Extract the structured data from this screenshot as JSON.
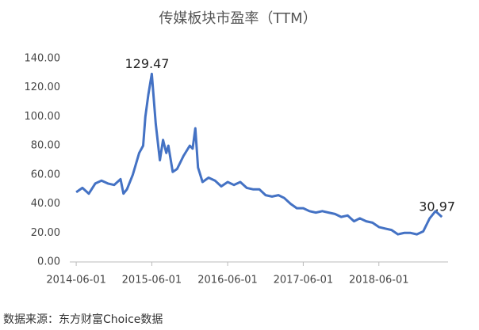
{
  "chart_data": {
    "type": "line",
    "title": "传媒板块市盈率（TTM）",
    "x": [
      "2014-06-01",
      "2014-07-01",
      "2014-08-01",
      "2014-09-01",
      "2014-10-01",
      "2014-11-01",
      "2014-12-01",
      "2015-01-01",
      "2015-01-15",
      "2015-02-01",
      "2015-03-01",
      "2015-04-01",
      "2015-04-20",
      "2015-05-01",
      "2015-05-15",
      "2015-06-01",
      "2015-06-20",
      "2015-07-10",
      "2015-07-25",
      "2015-08-10",
      "2015-08-20",
      "2015-09-10",
      "2015-10-01",
      "2015-11-01",
      "2015-12-01",
      "2015-12-15",
      "2015-12-28",
      "2016-01-10",
      "2016-02-01",
      "2016-03-01",
      "2016-04-01",
      "2016-05-01",
      "2016-06-01",
      "2016-07-01",
      "2016-08-01",
      "2016-09-01",
      "2016-10-01",
      "2016-11-01",
      "2016-12-01",
      "2017-01-01",
      "2017-02-01",
      "2017-03-01",
      "2017-04-01",
      "2017-05-01",
      "2017-06-01",
      "2017-07-01",
      "2017-08-01",
      "2017-09-01",
      "2017-10-01",
      "2017-11-01",
      "2017-12-01",
      "2018-01-01",
      "2018-02-01",
      "2018-03-01",
      "2018-04-01",
      "2018-05-01",
      "2018-06-01",
      "2018-07-01",
      "2018-08-01",
      "2018-09-01",
      "2018-10-01",
      "2018-11-01",
      "2018-12-01",
      "2019-01-01",
      "2019-02-01",
      "2019-03-01",
      "2019-04-01"
    ],
    "series": [
      {
        "color": "#4472c4",
        "values": [
          48,
          51,
          47,
          54,
          56,
          54,
          53,
          57,
          47,
          50,
          60,
          75,
          80,
          100,
          115,
          129.47,
          95,
          70,
          84,
          75,
          80,
          62,
          64,
          73,
          80,
          78,
          92,
          65,
          55,
          58,
          56,
          52,
          55,
          53,
          55,
          51,
          50,
          50,
          46,
          45,
          46,
          44,
          40,
          37,
          37,
          35,
          34,
          35,
          34,
          33,
          31,
          32,
          28,
          30,
          28,
          27,
          24,
          23,
          22,
          19,
          20,
          20,
          19,
          21,
          30,
          35,
          30.97
        ]
      }
    ],
    "xlim": [
      "2014-05-01",
      "2019-05-01"
    ],
    "xticks": [
      "2014-06-01",
      "2015-06-01",
      "2016-06-01",
      "2017-06-01",
      "2018-06-01"
    ],
    "ylim": [
      0,
      140
    ],
    "yticks": [
      {
        "value": 0,
        "label": "0.00"
      },
      {
        "value": 20,
        "label": "20.00"
      },
      {
        "value": 40,
        "label": "40.00"
      },
      {
        "value": 60,
        "label": "60.00"
      },
      {
        "value": 80,
        "label": "80.00"
      },
      {
        "value": 100,
        "label": "100.00"
      },
      {
        "value": 120,
        "label": "120.00"
      },
      {
        "value": 140,
        "label": "140.00"
      }
    ],
    "grid": false,
    "source": "数据来源：东方财富Choice数据"
  }
}
